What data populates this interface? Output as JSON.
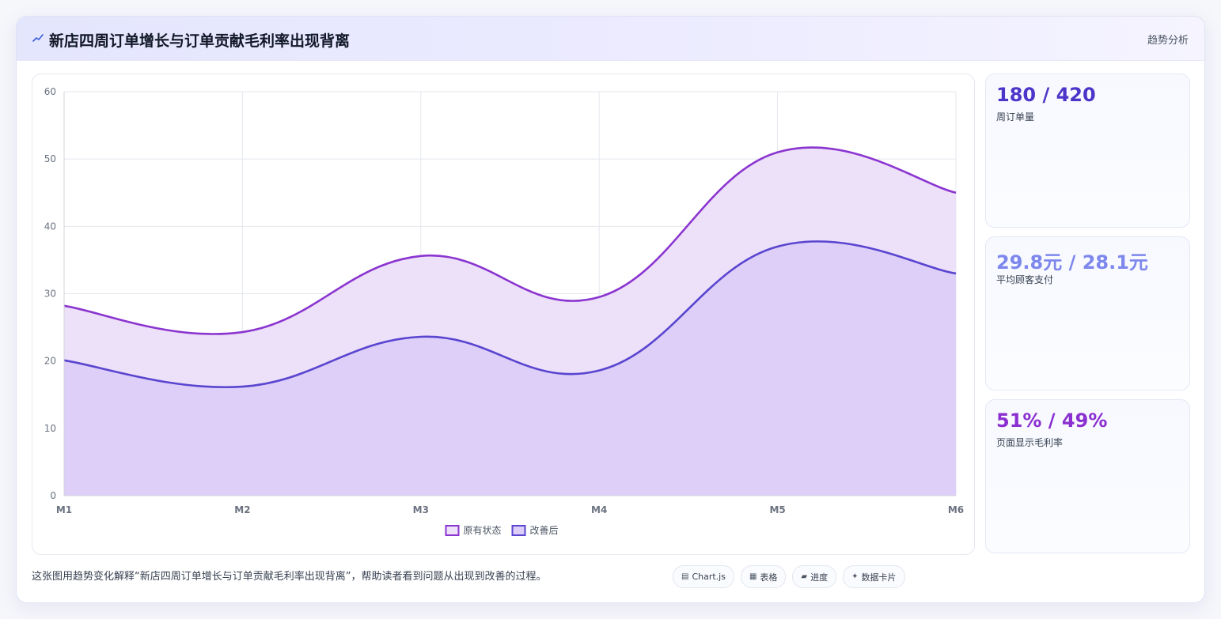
{
  "header": {
    "icon": "chart-line-icon",
    "title": "新店四周订单增长与订单贡献毛利率出现背离",
    "tag": "趋势分析"
  },
  "chart_data": {
    "type": "area",
    "categories": [
      "M1",
      "M2",
      "M3",
      "M4",
      "M5",
      "M6"
    ],
    "ylim": [
      0,
      60
    ],
    "yticks": [
      0,
      10,
      20,
      30,
      40,
      50,
      60
    ],
    "grid": true,
    "legend_position": "bottom",
    "series": [
      {
        "name": "原有状态",
        "values": [
          28.2,
          24.3,
          35.6,
          29.5,
          51.0,
          45.0
        ],
        "color": "#8b35d0",
        "fill": "#ede0f9"
      },
      {
        "name": "改善后",
        "values": [
          20.1,
          16.2,
          23.6,
          18.6,
          37.0,
          33.0
        ],
        "color": "#5945cf",
        "fill": "#dccef8"
      }
    ]
  },
  "stats": [
    {
      "value": "180 / 420",
      "label": "周订单量",
      "color": "#4c35c9"
    },
    {
      "value": "29.8元 / 28.1元",
      "label": "平均顾客支付",
      "color": "#7d87ec"
    },
    {
      "value": "51% / 49%",
      "label": "页面显示毛利率",
      "color": "#8a2fd0"
    }
  ],
  "footer": {
    "text": "这张图用趋势变化解释“新店四周订单增长与订单贡献毛利率出现背离”，帮助读者看到问题从出现到改善的过程。",
    "pills": [
      {
        "icon": "chart-icon",
        "glyph": "▤",
        "label": "Chart.js"
      },
      {
        "icon": "table-icon",
        "glyph": "▦",
        "label": "表格"
      },
      {
        "icon": "progress-icon",
        "glyph": "▰",
        "label": "进度"
      },
      {
        "icon": "card-icon",
        "glyph": "✦",
        "label": "数据卡片"
      }
    ]
  }
}
